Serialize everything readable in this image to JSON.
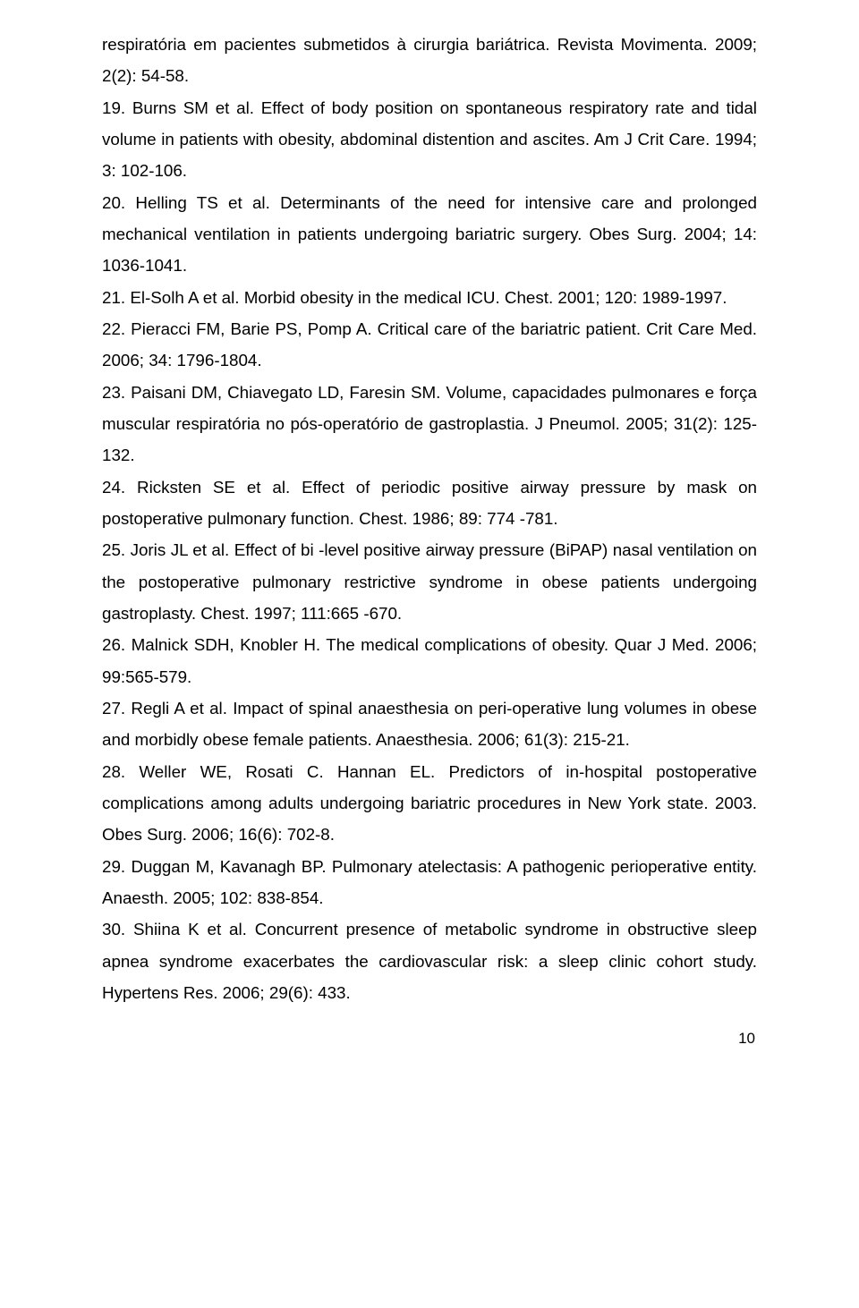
{
  "references": [
    "respiratória em pacientes submetidos à cirurgia bariátrica. Revista Movimenta. 2009; 2(2): 54-58.",
    "19. Burns SM et al. Effect of body position on spontaneous respiratory rate and tidal volume in patients with obesity, abdominal distention and ascites. Am J Crit Care. 1994; 3: 102-106.",
    "20. Helling TS et al. Determinants of the need for intensive care and prolonged mechanical ventilation in patients undergoing bariatric surgery. Obes Surg. 2004; 14: 1036-1041.",
    "21. El-Solh A et al. Morbid obesity in the medical ICU. Chest. 2001; 120: 1989-1997.",
    "22. Pieracci FM, Barie PS, Pomp A. Critical care of the bariatric patient. Crit Care Med. 2006; 34: 1796-1804.",
    "23. Paisani DM, Chiavegato LD, Faresin SM. Volume, capacidades pulmonares e força muscular respiratória no pós-operatório de gastroplastia. J Pneumol. 2005; 31(2): 125-132.",
    "24. Ricksten SE et al. Effect of periodic positive airway pressure by mask on postoperative pulmonary function. Chest. 1986; 89: 774 -781.",
    "25. Joris JL et al. Effect of bi -level positive airway pressure (BiPAP) nasal ventilation on the postoperative pulmonary restrictive syndrome in obese patients undergoing gastroplasty. Chest. 1997; 111:665 -670.",
    "26. Malnick SDH, Knobler H. The medical complications of obesity. Quar J Med. 2006; 99:565-579.",
    "27. Regli A et al. Impact of spinal anaesthesia on peri-operative lung volumes in obese and morbidly obese female patients. Anaesthesia. 2006; 61(3): 215-21.",
    "28. Weller WE, Rosati C. Hannan EL. Predictors of in-hospital postoperative complications among adults undergoing bariatric procedures in New York state. 2003. Obes Surg. 2006; 16(6): 702-8.",
    "29. Duggan M, Kavanagh BP. Pulmonary atelectasis: A pathogenic perioperative entity. Anaesth. 2005; 102: 838-854.",
    "30. Shiina K et al. Concurrent presence of metabolic syndrome in obstructive sleep apnea syndrome exacerbates the cardiovascular risk: a sleep clinic cohort study. Hypertens Res. 2006; 29(6): 433."
  ],
  "pageNumber": "10"
}
